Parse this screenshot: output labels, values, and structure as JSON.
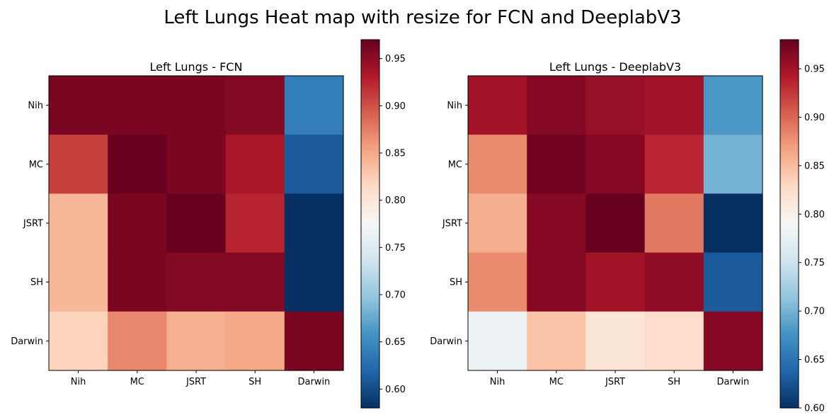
{
  "figure_title": "Left Lungs Heat map with resize for FCN and DeeplabV3",
  "chart_data": [
    {
      "type": "heatmap",
      "title": "Left Lungs - FCN",
      "x_categories": [
        "Nih",
        "MC",
        "JSRT",
        "SH",
        "Darwin"
      ],
      "y_categories": [
        "Nih",
        "MC",
        "JSRT",
        "SH",
        "Darwin"
      ],
      "values": [
        [
          0.96,
          0.96,
          0.96,
          0.955,
          0.64
        ],
        [
          0.91,
          0.97,
          0.96,
          0.935,
          0.61
        ],
        [
          0.84,
          0.96,
          0.97,
          0.925,
          0.58
        ],
        [
          0.84,
          0.96,
          0.955,
          0.955,
          0.58
        ],
        [
          0.82,
          0.87,
          0.845,
          0.85,
          0.96
        ]
      ],
      "colormap": "RdBu_r",
      "vmin": 0.58,
      "vmax": 0.97,
      "colorbar_ticks": [
        0.6,
        0.65,
        0.7,
        0.75,
        0.8,
        0.85,
        0.9,
        0.95
      ],
      "colorbar_tick_labels": [
        "0.60",
        "0.65",
        "0.70",
        "0.75",
        "0.80",
        "0.85",
        "0.90",
        "0.95"
      ]
    },
    {
      "type": "heatmap",
      "title": "Left Lungs - DeeplabV3",
      "x_categories": [
        "Nih",
        "MC",
        "JSRT",
        "SH",
        "Darwin"
      ],
      "y_categories": [
        "Nih",
        "MC",
        "JSRT",
        "SH",
        "Darwin"
      ],
      "values": [
        [
          0.95,
          0.965,
          0.955,
          0.95,
          0.68
        ],
        [
          0.88,
          0.975,
          0.965,
          0.935,
          0.7
        ],
        [
          0.86,
          0.965,
          0.98,
          0.89,
          0.6
        ],
        [
          0.88,
          0.965,
          0.95,
          0.96,
          0.63
        ],
        [
          0.78,
          0.845,
          0.815,
          0.825,
          0.965
        ]
      ],
      "colormap": "RdBu_r",
      "vmin": 0.6,
      "vmax": 0.98,
      "colorbar_ticks": [
        0.6,
        0.65,
        0.7,
        0.75,
        0.8,
        0.85,
        0.9,
        0.95
      ],
      "colorbar_tick_labels": [
        "0.60",
        "0.65",
        "0.70",
        "0.75",
        "0.80",
        "0.85",
        "0.90",
        "0.95"
      ]
    }
  ]
}
